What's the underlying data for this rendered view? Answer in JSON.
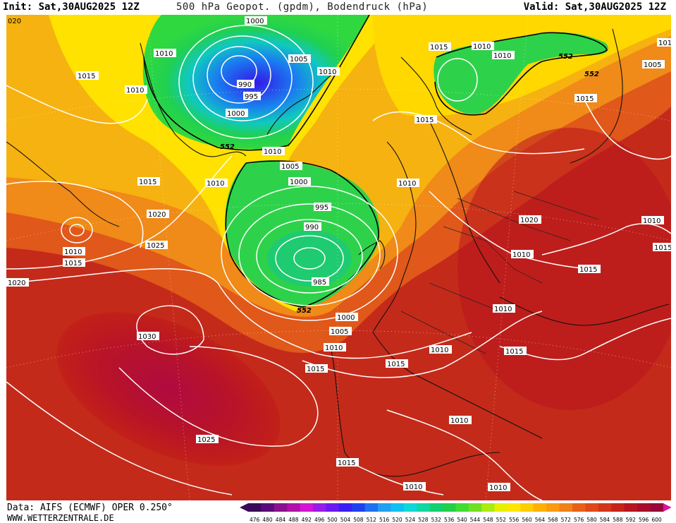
{
  "header": {
    "init": "Init: Sat,30AUG2025 12Z",
    "title": "500 hPa Geopot. (gpdm), Bodendruck (hPa)",
    "valid": "Valid: Sat,30AUG2025 12Z"
  },
  "map": {
    "corner_label": "020",
    "isobar_labels": [
      "1000",
      "1010",
      "1005",
      "1010",
      "990",
      "995",
      "1000",
      "1015",
      "1010",
      "552",
      "1010",
      "1005",
      "1000",
      "1015",
      "1010",
      "995",
      "990",
      "985",
      "552",
      "1000",
      "1005",
      "1010",
      "1015",
      "1020",
      "1025",
      "1030",
      "1025",
      "1020",
      "1015",
      "1010",
      "1015",
      "1010",
      "1015",
      "1010",
      "1015",
      "1010",
      "552",
      "552",
      "1010",
      "1005",
      "1015",
      "1020",
      "1010",
      "1015",
      "1010",
      "1015",
      "1010",
      "1010",
      "1015",
      "1010",
      "1015",
      "1010",
      "1010"
    ],
    "colors": {
      "low_core": "#2a2af0",
      "mid_green": "#22dd44",
      "yellow": "#ffee00",
      "orange": "#f29a18",
      "red": "#cc2a1c",
      "high_core": "#aa0044"
    }
  },
  "footer": {
    "credit_line1": "Data: AIFS (ECMWF) OPER 0.250°",
    "credit_line2": "WWW.WETTERZENTRALE.DE"
  },
  "legend": {
    "values": [
      "476",
      "480",
      "484",
      "488",
      "492",
      "496",
      "500",
      "504",
      "508",
      "512",
      "516",
      "520",
      "524",
      "528",
      "532",
      "536",
      "540",
      "544",
      "548",
      "552",
      "556",
      "560",
      "564",
      "568",
      "572",
      "576",
      "580",
      "584",
      "588",
      "592",
      "596",
      "600"
    ],
    "colors": [
      "#3a0a5a",
      "#5a0a7a",
      "#8a1090",
      "#b010a8",
      "#d414d4",
      "#9a1ae8",
      "#6a1af0",
      "#3a20f0",
      "#2040f0",
      "#2070f0",
      "#20a0f0",
      "#10c0f0",
      "#10d8d8",
      "#10d8a0",
      "#10d070",
      "#20d048",
      "#40dc30",
      "#70e020",
      "#a8ec10",
      "#e8f000",
      "#ffe600",
      "#ffcc00",
      "#ffb000",
      "#fa9a10",
      "#f08018",
      "#e86018",
      "#e04818",
      "#d43418",
      "#c82218",
      "#b81420",
      "#a80c2a",
      "#980838"
    ]
  }
}
